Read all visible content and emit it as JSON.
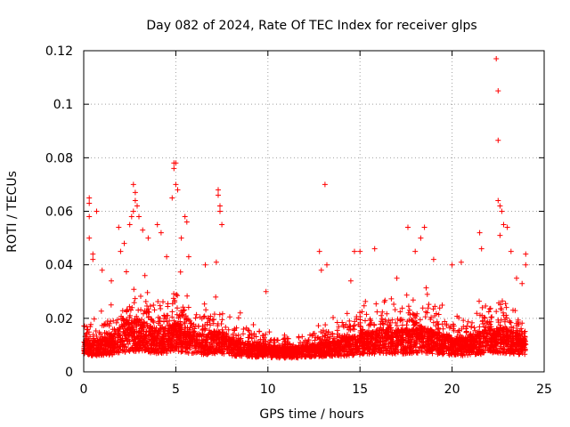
{
  "chart_data": {
    "type": "scatter",
    "title": "Day 082 of 2024, Rate Of TEC Index for receiver glps",
    "xlabel": "GPS time / hours",
    "ylabel": "ROTI / TECUs",
    "xlim": [
      0,
      25
    ],
    "ylim": [
      0,
      0.12
    ],
    "xticks": [
      0,
      5,
      10,
      15,
      20,
      25
    ],
    "xtick_labels": [
      "0",
      "5",
      "10",
      "15",
      "20",
      "25"
    ],
    "yticks": [
      0,
      0.02,
      0.04,
      0.06,
      0.08,
      0.1,
      0.12
    ],
    "ytick_labels": [
      "0",
      "0.02",
      "0.04",
      "0.06",
      "0.08",
      "0.1",
      "0.12"
    ],
    "grid": true,
    "marker": "+",
    "color": "#ff0000",
    "series": [
      {
        "name": "ROTI",
        "points": [
          [
            0.3,
            0.065
          ],
          [
            0.3,
            0.063
          ],
          [
            0.3,
            0.058
          ],
          [
            0.3,
            0.05
          ],
          [
            0.5,
            0.044
          ],
          [
            0.5,
            0.042
          ],
          [
            0.7,
            0.06
          ],
          [
            1.0,
            0.038
          ],
          [
            1.5,
            0.034
          ],
          [
            1.9,
            0.054
          ],
          [
            2.0,
            0.045
          ],
          [
            2.2,
            0.048
          ],
          [
            2.5,
            0.055
          ],
          [
            2.6,
            0.058
          ],
          [
            2.7,
            0.06
          ],
          [
            2.7,
            0.07
          ],
          [
            2.8,
            0.067
          ],
          [
            2.8,
            0.064
          ],
          [
            2.9,
            0.062
          ],
          [
            3.0,
            0.058
          ],
          [
            3.2,
            0.053
          ],
          [
            3.5,
            0.05
          ],
          [
            4.0,
            0.055
          ],
          [
            4.2,
            0.052
          ],
          [
            4.5,
            0.043
          ],
          [
            4.8,
            0.065
          ],
          [
            4.9,
            0.078
          ],
          [
            4.9,
            0.076
          ],
          [
            5.0,
            0.078
          ],
          [
            5.0,
            0.07
          ],
          [
            5.1,
            0.068
          ],
          [
            5.3,
            0.05
          ],
          [
            5.5,
            0.058
          ],
          [
            5.6,
            0.056
          ],
          [
            5.7,
            0.043
          ],
          [
            6.6,
            0.04
          ],
          [
            7.3,
            0.068
          ],
          [
            7.3,
            0.066
          ],
          [
            7.4,
            0.062
          ],
          [
            7.4,
            0.06
          ],
          [
            7.5,
            0.055
          ],
          [
            7.2,
            0.041
          ],
          [
            8.5,
            0.022
          ],
          [
            9.9,
            0.03
          ],
          [
            12.8,
            0.045
          ],
          [
            12.9,
            0.038
          ],
          [
            13.1,
            0.07
          ],
          [
            13.2,
            0.04
          ],
          [
            14.5,
            0.034
          ],
          [
            14.7,
            0.045
          ],
          [
            15.0,
            0.045
          ],
          [
            15.8,
            0.046
          ],
          [
            17.0,
            0.035
          ],
          [
            17.6,
            0.054
          ],
          [
            18.0,
            0.045
          ],
          [
            18.3,
            0.05
          ],
          [
            18.5,
            0.054
          ],
          [
            19.0,
            0.042
          ],
          [
            20.0,
            0.04
          ],
          [
            20.5,
            0.041
          ],
          [
            21.5,
            0.052
          ],
          [
            21.6,
            0.046
          ],
          [
            22.4,
            0.117
          ],
          [
            22.5,
            0.105
          ],
          [
            22.5,
            0.0865
          ],
          [
            22.5,
            0.064
          ],
          [
            22.6,
            0.062
          ],
          [
            22.7,
            0.06
          ],
          [
            22.8,
            0.055
          ],
          [
            22.6,
            0.051
          ],
          [
            23.0,
            0.054
          ],
          [
            23.2,
            0.045
          ],
          [
            23.5,
            0.035
          ],
          [
            23.8,
            0.033
          ],
          [
            24.0,
            0.044
          ],
          [
            24.0,
            0.04
          ]
        ]
      }
    ]
  }
}
